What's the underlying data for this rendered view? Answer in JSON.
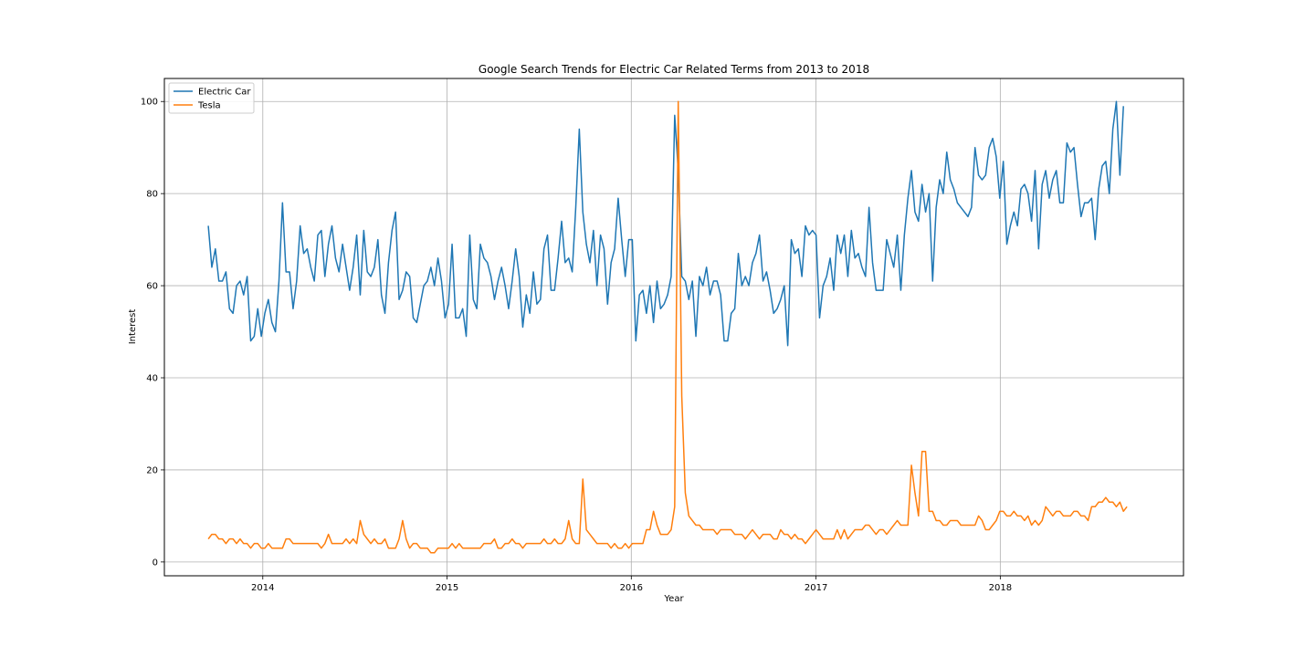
{
  "chart_data": {
    "type": "line",
    "title": "Google Search Trends for Electric Car Related Terms from 2013 to 2018",
    "xlabel": "Year",
    "ylabel": "Interest",
    "x_start": "2013-09-15",
    "x_interval": "weekly",
    "xlim": [
      "2013-06-20",
      "2018-12-30"
    ],
    "ylim": [
      -3,
      105
    ],
    "x_ticks": [
      {
        "date": "2014-01-01",
        "label": "2014"
      },
      {
        "date": "2015-01-01",
        "label": "2015"
      },
      {
        "date": "2016-01-01",
        "label": "2016"
      },
      {
        "date": "2017-01-01",
        "label": "2017"
      },
      {
        "date": "2018-01-01",
        "label": "2018"
      }
    ],
    "y_ticks": [
      0,
      20,
      40,
      60,
      80,
      100
    ],
    "grid": true,
    "legend_position": "top-left",
    "series": [
      {
        "name": "Electric Car",
        "color": "#1f77b4",
        "values": [
          73,
          64,
          68,
          61,
          61,
          63,
          55,
          54,
          60,
          61,
          58,
          62,
          48,
          49,
          55,
          49,
          54,
          57,
          52,
          50,
          61,
          78,
          63,
          63,
          55,
          61,
          73,
          67,
          68,
          64,
          61,
          71,
          72,
          62,
          69,
          73,
          66,
          63,
          69,
          64,
          59,
          64,
          71,
          58,
          72,
          63,
          62,
          64,
          70,
          58,
          54,
          65,
          72,
          76,
          57,
          59,
          63,
          62,
          53,
          52,
          56,
          60,
          61,
          64,
          60,
          66,
          61,
          53,
          56,
          69,
          53,
          53,
          55,
          49,
          71,
          57,
          55,
          69,
          66,
          65,
          62,
          57,
          61,
          64,
          60,
          55,
          61,
          68,
          62,
          51,
          58,
          54,
          63,
          56,
          57,
          68,
          71,
          59,
          59,
          66,
          74,
          65,
          66,
          63,
          77,
          94,
          76,
          69,
          65,
          72,
          60,
          71,
          68,
          56,
          65,
          68,
          79,
          70,
          62,
          70,
          70,
          48,
          58,
          59,
          54,
          60,
          52,
          61,
          55,
          56,
          58,
          62,
          97,
          85,
          62,
          61,
          57,
          61,
          49,
          62,
          60,
          64,
          58,
          61,
          61,
          58,
          48,
          48,
          54,
          55,
          67,
          60,
          62,
          60,
          65,
          67,
          71,
          61,
          63,
          59,
          54,
          55,
          57,
          60,
          47,
          70,
          67,
          68,
          62,
          73,
          71,
          72,
          71,
          53,
          60,
          62,
          66,
          59,
          71,
          67,
          71,
          62,
          72,
          66,
          67,
          64,
          62,
          77,
          65,
          59,
          59,
          59,
          70,
          67,
          64,
          71,
          59,
          71,
          79,
          85,
          76,
          74,
          82,
          76,
          80,
          61,
          77,
          83,
          80,
          89,
          83,
          81,
          78,
          77,
          76,
          75,
          77,
          90,
          84,
          83,
          84,
          90,
          92,
          88,
          79,
          87,
          69,
          73,
          76,
          73,
          81,
          82,
          80,
          74,
          85,
          68,
          82,
          85,
          79,
          83,
          85,
          78,
          78,
          91,
          89,
          90,
          82,
          75,
          78,
          78,
          79,
          70,
          81,
          86,
          87,
          80,
          94,
          100,
          84,
          99
        ]
      },
      {
        "name": "Tesla",
        "color": "#ff7f0e",
        "values": [
          5,
          6,
          6,
          5,
          5,
          4,
          5,
          5,
          4,
          5,
          4,
          4,
          3,
          4,
          4,
          3,
          3,
          4,
          3,
          3,
          3,
          3,
          5,
          5,
          4,
          4,
          4,
          4,
          4,
          4,
          4,
          4,
          3,
          4,
          6,
          4,
          4,
          4,
          4,
          5,
          4,
          5,
          4,
          9,
          6,
          5,
          4,
          5,
          4,
          4,
          5,
          3,
          3,
          3,
          5,
          9,
          5,
          3,
          4,
          4,
          3,
          3,
          3,
          2,
          2,
          3,
          3,
          3,
          3,
          4,
          3,
          4,
          3,
          3,
          3,
          3,
          3,
          3,
          4,
          4,
          4,
          5,
          3,
          3,
          4,
          4,
          5,
          4,
          4,
          3,
          4,
          4,
          4,
          4,
          4,
          5,
          4,
          4,
          5,
          4,
          4,
          5,
          9,
          5,
          4,
          4,
          18,
          7,
          6,
          5,
          4,
          4,
          4,
          4,
          3,
          4,
          3,
          3,
          4,
          3,
          4,
          4,
          4,
          4,
          7,
          7,
          11,
          8,
          6,
          6,
          6,
          7,
          12,
          100,
          36,
          15,
          10,
          9,
          8,
          8,
          7,
          7,
          7,
          7,
          6,
          7,
          7,
          7,
          7,
          6,
          6,
          6,
          5,
          6,
          7,
          6,
          5,
          6,
          6,
          6,
          5,
          5,
          7,
          6,
          6,
          5,
          6,
          5,
          5,
          4,
          5,
          6,
          7,
          6,
          5,
          5,
          5,
          5,
          7,
          5,
          7,
          5,
          6,
          7,
          7,
          7,
          8,
          8,
          7,
          6,
          7,
          7,
          6,
          7,
          8,
          9,
          8,
          8,
          8,
          21,
          15,
          10,
          24,
          24,
          11,
          11,
          9,
          9,
          8,
          8,
          9,
          9,
          9,
          8,
          8,
          8,
          8,
          8,
          10,
          9,
          7,
          7,
          8,
          9,
          11,
          11,
          10,
          10,
          11,
          10,
          10,
          9,
          10,
          8,
          9,
          8,
          9,
          12,
          11,
          10,
          11,
          11,
          10,
          10,
          10,
          11,
          11,
          10,
          10,
          9,
          12,
          12,
          13,
          13,
          14,
          13,
          13,
          12,
          13,
          11,
          12
        ]
      }
    ]
  }
}
